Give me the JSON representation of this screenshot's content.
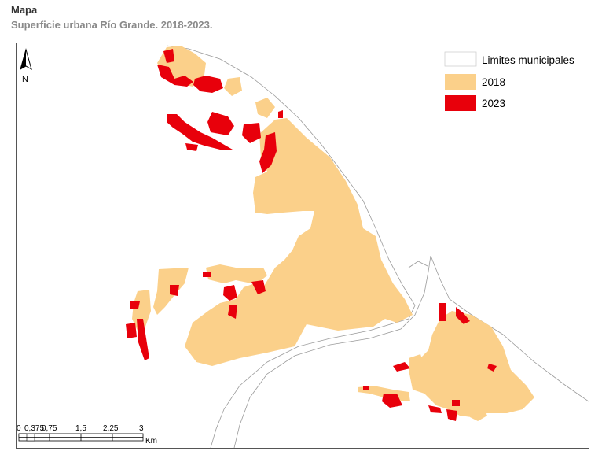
{
  "header": {
    "title": "Mapa",
    "subtitle": "Superficie urbana Río Grande. 2018-2023."
  },
  "north_arrow": {
    "label": "N",
    "icon": "north-arrow-icon"
  },
  "legend": {
    "items": [
      {
        "label": "Limites municipales",
        "color": "#ffffff",
        "stroke": "#cccccc"
      },
      {
        "label": "2018",
        "color": "#fbd08a"
      },
      {
        "label": "2023",
        "color": "#e8000b"
      }
    ]
  },
  "scale_bar": {
    "ticks": [
      "0",
      "0,375",
      "0,75",
      "1,5",
      "2,25",
      "3"
    ],
    "unit": "Km"
  },
  "colors": {
    "urban_2018": "#fbd08a",
    "urban_2023": "#e8000b",
    "boundary": "#9a9a9a"
  }
}
